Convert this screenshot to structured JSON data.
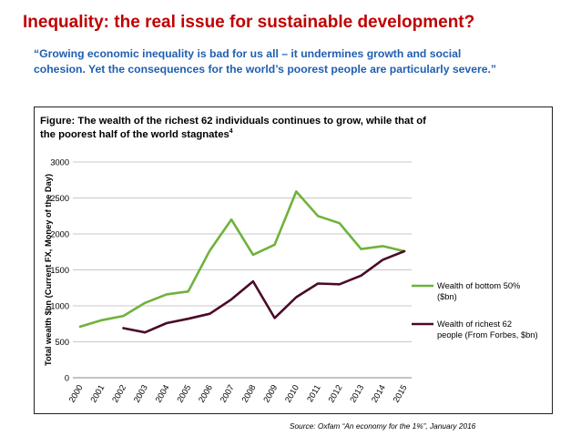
{
  "slide": {
    "title": "Inequality: the real issue for sustainable development?",
    "quote_line1": "“Growing economic inequality is bad for us all – it undermines growth and social",
    "quote_line2": "cohesion. Yet the consequences for the world’s poorest people are particularly severe.”",
    "source": "Source: Oxfam “An economy for the 1%”, January 2016"
  },
  "colors": {
    "title": "#c00000",
    "quote": "#1f5fb0",
    "series_bottom": "#6fb23c",
    "series_richest": "#4a0a2a",
    "grid": "#c8c8c8"
  },
  "chart_data": {
    "type": "line",
    "title_line1": "Figure: The wealth of the richest 62 individuals continues to grow, while that of",
    "title_line2": "the poorest half of the world stagnates",
    "title_superscript": "4",
    "xlabel": "",
    "ylabel": "Total wealth $bn (Current FX, Money of the Day)",
    "ylim": [
      0,
      3000
    ],
    "yticks": [
      0,
      500,
      1000,
      1500,
      2000,
      2500,
      3000
    ],
    "categories": [
      "2000",
      "2001",
      "2002",
      "2003",
      "2004",
      "2005",
      "2006",
      "2007",
      "2008",
      "2009",
      "2010",
      "2011",
      "2012",
      "2013",
      "2014",
      "2015"
    ],
    "series": [
      {
        "name": "Wealth of bottom 50% ($bn)",
        "legend_line1": "Wealth of bottom 50%",
        "legend_line2": "($bn)",
        "values": [
          710,
          800,
          860,
          1040,
          1160,
          1200,
          1770,
          2200,
          1710,
          1850,
          2590,
          2250,
          2150,
          1790,
          1830,
          1760
        ]
      },
      {
        "name": "Wealth of richest 62 people (From Forbes, $bn)",
        "legend_line1": "Wealth of richest 62",
        "legend_line2": "people (From Forbes, $bn)",
        "values": [
          null,
          null,
          690,
          630,
          760,
          820,
          890,
          1090,
          1340,
          830,
          1120,
          1310,
          1300,
          1420,
          1640,
          1760
        ]
      }
    ],
    "legend_position": "right",
    "grid": true
  }
}
